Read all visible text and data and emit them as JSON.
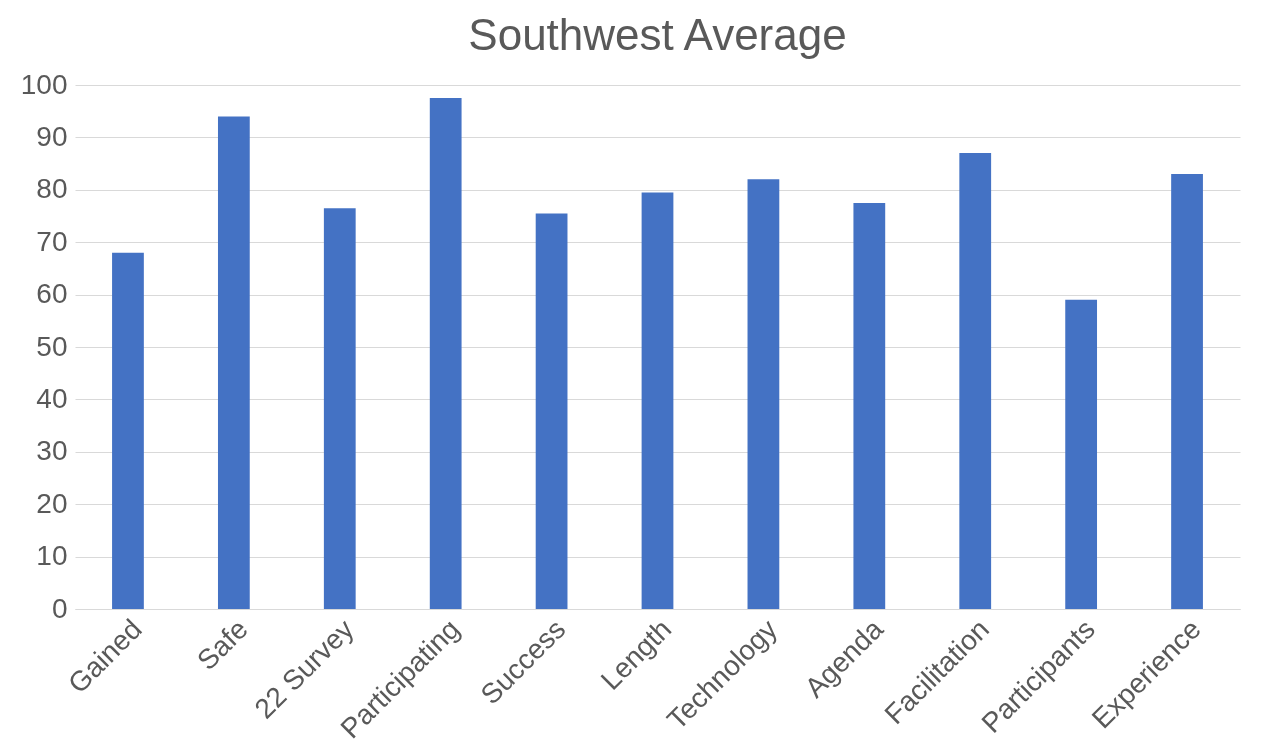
{
  "chart_data": {
    "type": "bar",
    "title": "Southwest Average",
    "categories": [
      "Gained",
      "Safe",
      "22 Survey",
      "Participating",
      "Success",
      "Length",
      "Technology",
      "Agenda",
      "Facilitation",
      "Participants",
      "Experience"
    ],
    "values": [
      68,
      94,
      76.5,
      97.5,
      75.5,
      79.5,
      82,
      77.5,
      87,
      59,
      83
    ],
    "color": "#4472c4",
    "ylim": [
      0,
      100
    ],
    "yticks": [
      0,
      10,
      20,
      30,
      40,
      50,
      60,
      70,
      80,
      90,
      100
    ],
    "grid": "y"
  }
}
